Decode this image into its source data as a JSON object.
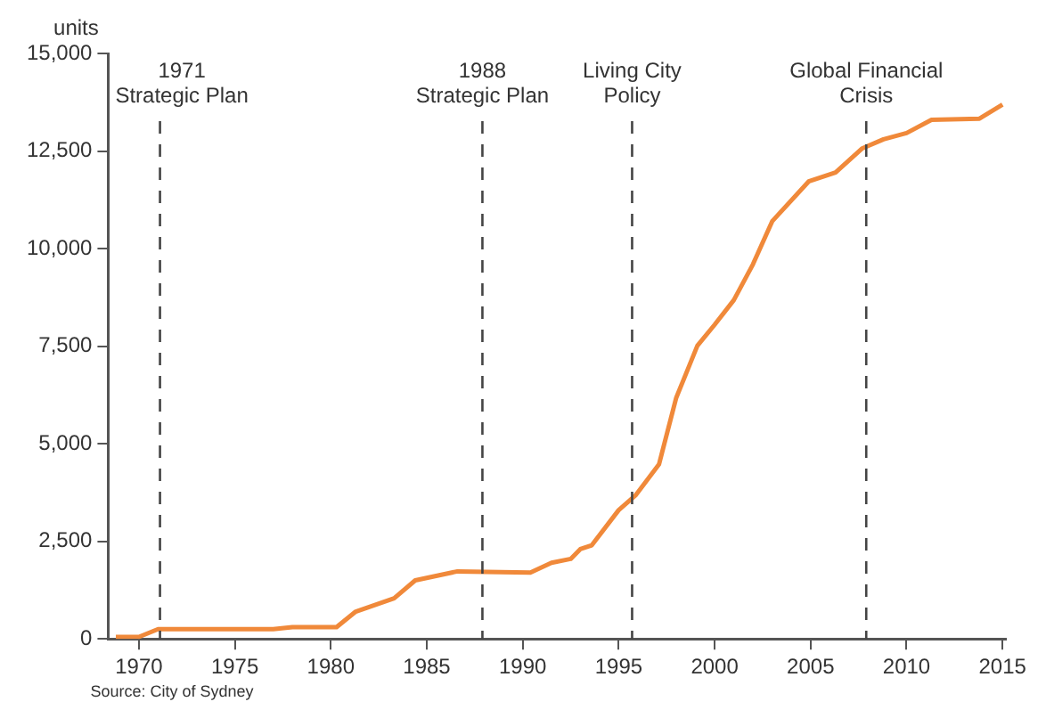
{
  "chart_data": {
    "type": "line",
    "ylabel": "units",
    "x": [
      1968.8,
      1970,
      1971,
      1977,
      1978,
      1980.3,
      1981.3,
      1983.3,
      1984.4,
      1986.6,
      1990.4,
      1991.5,
      1992.5,
      1993,
      1993.6,
      1995,
      1995.9,
      1997.1,
      1998,
      1999.1,
      2000,
      2001,
      2002,
      2003,
      2004.9,
      2006.3,
      2007.7,
      2008.8,
      2010,
      2011.3,
      2013.8,
      2015
    ],
    "series": [
      {
        "color": "#f0893a",
        "values": [
          50,
          50,
          250,
          250,
          300,
          300,
          700,
          1040,
          1500,
          1730,
          1700,
          1950,
          2050,
          2300,
          2400,
          3300,
          3690,
          4470,
          6180,
          7510,
          8050,
          8680,
          9600,
          10700,
          11720,
          11950,
          12570,
          12800,
          12960,
          13300,
          13330,
          13690
        ]
      }
    ],
    "xlim": [
      1968.4,
      2015.2
    ],
    "xticks": [
      1970,
      1975,
      1980,
      1985,
      1990,
      1995,
      2000,
      2005,
      2010,
      2015
    ],
    "ylim": [
      0,
      15000
    ],
    "yticks": [
      {
        "value": 0,
        "label": "0"
      },
      {
        "value": 2500,
        "label": "2,500"
      },
      {
        "value": 5000,
        "label": "5,000"
      },
      {
        "value": 7500,
        "label": "7,500"
      },
      {
        "value": 10000,
        "label": "10,000"
      },
      {
        "value": 12500,
        "label": "12,500"
      },
      {
        "value": 15000,
        "label": "15,000"
      }
    ],
    "ref_lines": [
      {
        "axis": "x",
        "value": 1971.1,
        "label": "1971\nStrategic Plan",
        "color": "#444444",
        "line_style": "dashed"
      },
      {
        "axis": "x",
        "value": 1987.9,
        "label": "1988\nStrategic Plan",
        "color": "#444444",
        "line_style": "dashed"
      },
      {
        "axis": "x",
        "value": 1995.7,
        "label": "Living City\nPolicy",
        "color": "#444444",
        "line_style": "dashed"
      },
      {
        "axis": "x",
        "value": 2007.9,
        "label": "Global Financial\nCrisis",
        "color": "#444444",
        "line_style": "dashed"
      }
    ],
    "annotations": [
      "Source: City of Sydney"
    ],
    "grid": false,
    "legend": false,
    "marker": "none",
    "line_style": "solid"
  }
}
